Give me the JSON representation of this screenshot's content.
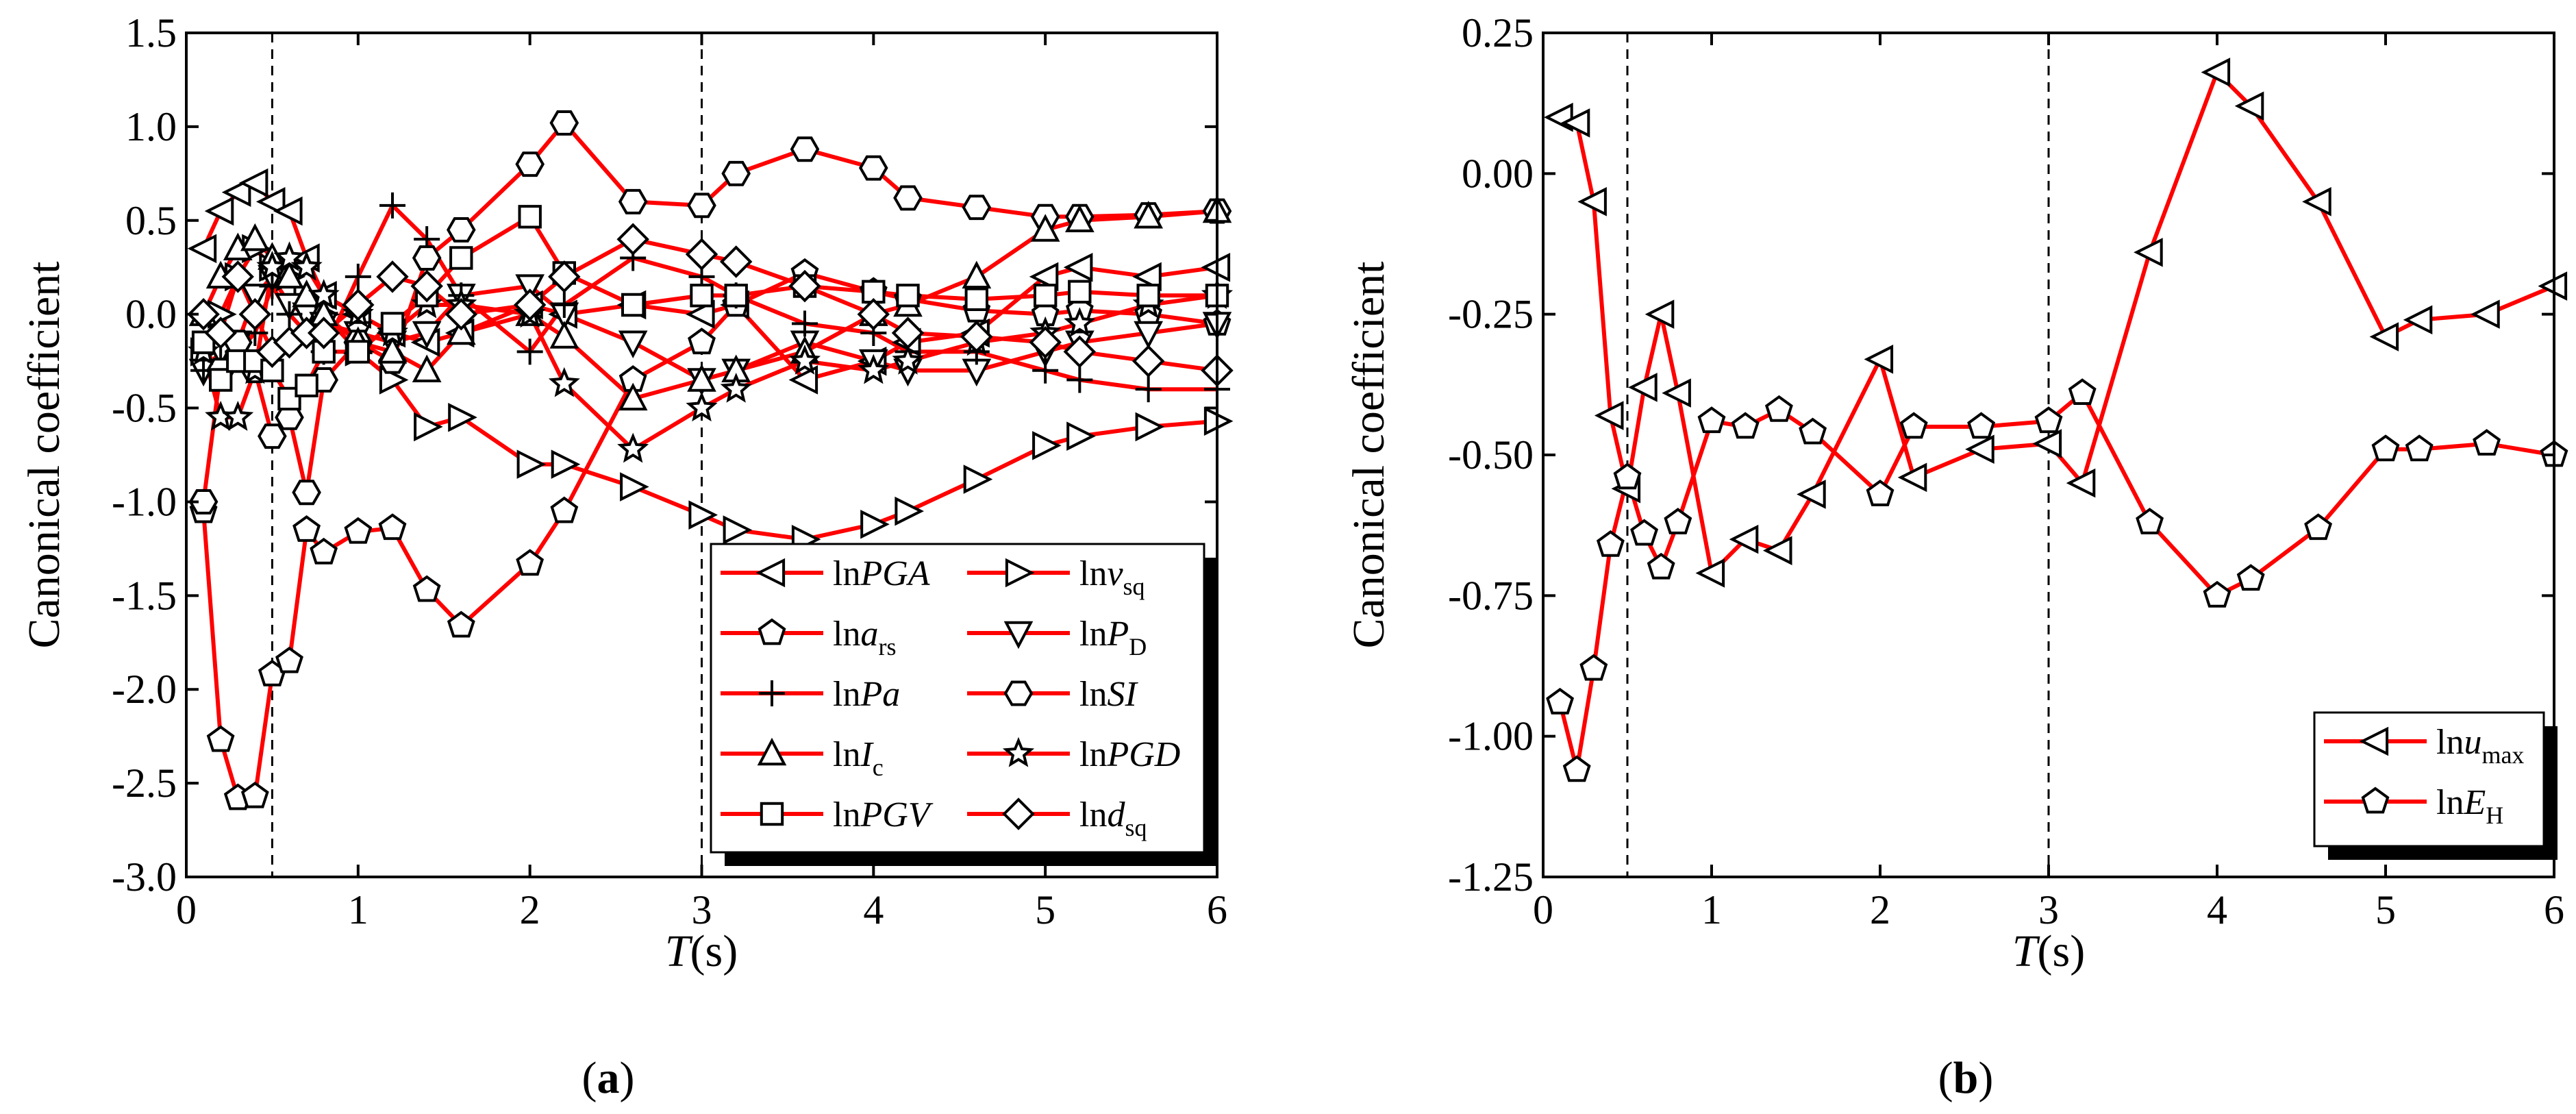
{
  "colors": {
    "series": "#ff0000",
    "marker_fill": "#ffffff",
    "marker_stroke": "#000000",
    "axis": "#000000"
  },
  "chart_data": [
    {
      "type": "line",
      "panel_label_parts": [
        "(",
        "a",
        ")"
      ],
      "xlabel_parts": [
        "T",
        "(s)"
      ],
      "ylabel": "Canonical coefficient",
      "xlim": [
        0,
        6
      ],
      "ylim": [
        -3.0,
        1.5
      ],
      "xticks": [
        "0",
        "1",
        "2",
        "3",
        "4",
        "5",
        "6"
      ],
      "yticks": [
        "-3.0",
        "-2.5",
        "-2.0",
        "-1.5",
        "-1.0",
        "-0.5",
        "0.0",
        "0.5",
        "1.0",
        "1.5"
      ],
      "reference_lines_x": [
        0.5,
        3
      ],
      "legend_position": "bottom-right",
      "series": [
        {
          "name": "lnPGA",
          "legend_parts": [
            "ln",
            "PGA",
            ""
          ],
          "marker": "tri-left",
          "x": [
            0.1,
            0.2,
            0.3,
            0.4,
            0.5,
            0.6,
            0.7,
            0.8,
            1.0,
            1.2,
            1.4,
            1.6,
            2.0,
            2.2,
            2.6,
            3.0,
            3.2,
            3.6,
            4.0,
            4.2,
            4.6,
            5.0,
            5.2,
            5.6,
            6.0
          ],
          "y": [
            0.35,
            0.55,
            0.65,
            0.7,
            0.6,
            0.55,
            0.3,
            0.1,
            0.0,
            -0.1,
            -0.15,
            -0.1,
            0.05,
            0.0,
            0.05,
            0.0,
            0.05,
            -0.35,
            -0.25,
            -0.15,
            -0.1,
            0.2,
            0.25,
            0.2,
            0.25
          ]
        },
        {
          "name": "lnvsq",
          "legend_parts": [
            "ln",
            "v",
            "sq"
          ],
          "marker": "tri-right",
          "x": [
            0.1,
            0.2,
            0.3,
            0.4,
            0.5,
            0.6,
            0.7,
            0.8,
            1.0,
            1.2,
            1.4,
            1.6,
            2.0,
            2.2,
            2.6,
            3.0,
            3.2,
            3.6,
            4.0,
            4.2,
            4.6,
            5.0,
            5.2,
            5.6,
            6.0
          ],
          "y": [
            -0.2,
            0.0,
            0.2,
            0.35,
            0.25,
            0.2,
            0.1,
            0.0,
            -0.2,
            -0.35,
            -0.6,
            -0.55,
            -0.8,
            -0.8,
            -0.92,
            -1.07,
            -1.15,
            -1.2,
            -1.12,
            -1.05,
            -0.88,
            -0.7,
            -0.65,
            -0.6,
            -0.57
          ]
        },
        {
          "name": "lnars",
          "legend_parts": [
            "ln",
            "a",
            "rs"
          ],
          "marker": "pentagon",
          "x": [
            0.1,
            0.2,
            0.3,
            0.4,
            0.5,
            0.6,
            0.7,
            0.8,
            1.0,
            1.2,
            1.4,
            1.6,
            2.0,
            2.2,
            2.6,
            3.0,
            3.2,
            3.6,
            4.0,
            4.2,
            4.6,
            5.0,
            5.2,
            5.6,
            6.0
          ],
          "y": [
            -1.05,
            -2.27,
            -2.58,
            -2.57,
            -1.92,
            -1.85,
            -1.15,
            -1.27,
            -1.16,
            -1.14,
            -1.47,
            -1.66,
            -1.33,
            -1.05,
            -0.35,
            -0.15,
            0.05,
            0.22,
            0.12,
            0.08,
            0.02,
            0.0,
            0.02,
            0.0,
            -0.05
          ]
        },
        {
          "name": "lnPD",
          "legend_parts": [
            "ln",
            "P",
            "D"
          ],
          "marker": "tri-down",
          "x": [
            0.1,
            0.2,
            0.3,
            0.4,
            0.5,
            0.6,
            0.7,
            0.8,
            1.0,
            1.2,
            1.4,
            1.6,
            2.0,
            2.2,
            2.6,
            3.0,
            3.2,
            3.6,
            4.0,
            4.2,
            4.6,
            5.0,
            5.2,
            5.6,
            6.0
          ],
          "y": [
            -0.3,
            -0.2,
            -0.15,
            0.1,
            0.2,
            0.05,
            0.0,
            -0.05,
            -0.1,
            -0.15,
            -0.1,
            0.1,
            0.15,
            0.0,
            -0.15,
            -0.35,
            -0.3,
            -0.15,
            -0.25,
            -0.3,
            -0.3,
            -0.2,
            -0.15,
            -0.1,
            -0.05
          ]
        },
        {
          "name": "lnPa",
          "legend_parts": [
            "ln",
            "Pa",
            ""
          ],
          "marker": "plus",
          "x": [
            0.1,
            0.2,
            0.3,
            0.4,
            0.5,
            0.6,
            0.7,
            0.8,
            1.0,
            1.2,
            1.4,
            1.6,
            2.0,
            2.2,
            2.6,
            3.0,
            3.2,
            3.6,
            4.0,
            4.2,
            4.6,
            5.0,
            5.2,
            5.6,
            6.0
          ],
          "y": [
            -0.3,
            -0.25,
            -0.2,
            -0.1,
            0.15,
            0.0,
            -0.1,
            -0.2,
            0.2,
            0.58,
            0.4,
            0.1,
            -0.2,
            0.05,
            0.3,
            0.2,
            0.1,
            -0.05,
            -0.1,
            -0.2,
            -0.2,
            -0.3,
            -0.35,
            -0.4,
            -0.4
          ]
        },
        {
          "name": "lnSI",
          "legend_parts": [
            "ln",
            "SI",
            ""
          ],
          "marker": "hexagon",
          "x": [
            0.1,
            0.2,
            0.3,
            0.4,
            0.5,
            0.6,
            0.7,
            0.8,
            1.0,
            1.2,
            1.4,
            1.6,
            2.0,
            2.2,
            2.6,
            3.0,
            3.2,
            3.6,
            4.0,
            4.2,
            4.6,
            5.0,
            5.2,
            5.6,
            6.0
          ],
          "y": [
            -1.0,
            -0.3,
            -0.15,
            -0.3,
            -0.65,
            -0.55,
            -0.95,
            -0.35,
            -0.15,
            -0.25,
            0.3,
            0.45,
            0.8,
            1.02,
            0.6,
            0.58,
            0.75,
            0.88,
            0.78,
            0.62,
            0.57,
            0.52,
            0.52,
            0.53,
            0.55
          ]
        },
        {
          "name": "lnIc",
          "legend_parts": [
            "ln",
            "I",
            "c"
          ],
          "marker": "tri-up",
          "x": [
            0.1,
            0.2,
            0.3,
            0.4,
            0.5,
            0.6,
            0.7,
            0.8,
            1.0,
            1.2,
            1.4,
            1.6,
            2.0,
            2.2,
            2.6,
            3.0,
            3.2,
            3.6,
            4.0,
            4.2,
            4.6,
            5.0,
            5.2,
            5.6,
            6.0
          ],
          "y": [
            0.0,
            0.2,
            0.35,
            0.4,
            0.3,
            0.2,
            0.1,
            0.0,
            -0.15,
            -0.2,
            -0.3,
            -0.1,
            0.0,
            -0.12,
            -0.45,
            -0.35,
            -0.3,
            -0.2,
            0.0,
            0.05,
            0.2,
            0.45,
            0.5,
            0.52,
            0.55
          ]
        },
        {
          "name": "lnPGD",
          "legend_parts": [
            "ln",
            "PGD",
            ""
          ],
          "marker": "star",
          "x": [
            0.1,
            0.2,
            0.3,
            0.4,
            0.5,
            0.6,
            0.7,
            0.8,
            1.0,
            1.2,
            1.4,
            1.6,
            2.0,
            2.2,
            2.6,
            3.0,
            3.2,
            3.6,
            4.0,
            4.2,
            4.6,
            5.0,
            5.2,
            5.6,
            6.0
          ],
          "y": [
            -0.2,
            -0.55,
            -0.55,
            -0.3,
            0.25,
            0.3,
            0.25,
            0.1,
            0.0,
            -0.1,
            0.05,
            0.05,
            0.0,
            -0.37,
            -0.72,
            -0.5,
            -0.4,
            -0.25,
            -0.3,
            -0.25,
            -0.15,
            -0.1,
            -0.05,
            0.05,
            0.1
          ]
        },
        {
          "name": "lnPGV",
          "legend_parts": [
            "ln",
            "PGV",
            ""
          ],
          "marker": "square",
          "x": [
            0.1,
            0.2,
            0.3,
            0.4,
            0.5,
            0.6,
            0.7,
            0.8,
            1.0,
            1.2,
            1.4,
            1.6,
            2.0,
            2.2,
            2.6,
            3.0,
            3.2,
            3.6,
            4.0,
            4.2,
            4.6,
            5.0,
            5.2,
            5.6,
            6.0
          ],
          "y": [
            -0.15,
            -0.35,
            -0.25,
            -0.25,
            -0.3,
            -0.45,
            -0.38,
            -0.2,
            -0.2,
            -0.05,
            0.1,
            0.3,
            0.52,
            0.22,
            0.05,
            0.1,
            0.1,
            0.15,
            0.12,
            0.1,
            0.08,
            0.1,
            0.12,
            0.1,
            0.1
          ]
        },
        {
          "name": "lndsq",
          "legend_parts": [
            "ln",
            "d",
            "sq"
          ],
          "marker": "diamond",
          "x": [
            0.1,
            0.2,
            0.3,
            0.4,
            0.5,
            0.6,
            0.7,
            0.8,
            1.0,
            1.2,
            1.4,
            1.6,
            2.0,
            2.2,
            2.6,
            3.0,
            3.2,
            3.6,
            4.0,
            4.2,
            4.6,
            5.0,
            5.2,
            5.6,
            6.0
          ],
          "y": [
            0.0,
            -0.1,
            0.2,
            0.0,
            -0.2,
            -0.15,
            -0.1,
            -0.1,
            0.05,
            0.2,
            0.15,
            0.0,
            0.05,
            0.2,
            0.4,
            0.32,
            0.28,
            0.15,
            0.0,
            -0.1,
            -0.12,
            -0.15,
            -0.2,
            -0.25,
            -0.3
          ]
        }
      ]
    },
    {
      "type": "line",
      "panel_label_parts": [
        "(",
        "b",
        ")"
      ],
      "xlabel_parts": [
        "T",
        "(s)"
      ],
      "ylabel": "Canonical coefficient",
      "xlim": [
        0,
        6
      ],
      "ylim": [
        -1.25,
        0.25
      ],
      "xticks": [
        "0",
        "1",
        "2",
        "3",
        "4",
        "5",
        "6"
      ],
      "yticks": [
        "-1.25",
        "-1.00",
        "-0.75",
        "-0.50",
        "-0.25",
        "0.00",
        "0.25"
      ],
      "reference_lines_x": [
        0.5,
        3
      ],
      "legend_position": "bottom-right",
      "series": [
        {
          "name": "lnumax",
          "legend_parts": [
            "ln",
            "u",
            "max"
          ],
          "marker": "tri-left",
          "x": [
            0.1,
            0.2,
            0.3,
            0.4,
            0.5,
            0.6,
            0.7,
            0.8,
            1.0,
            1.2,
            1.4,
            1.6,
            2.0,
            2.2,
            2.6,
            3.0,
            3.2,
            3.6,
            4.0,
            4.2,
            4.6,
            5.0,
            5.2,
            5.6,
            6.0
          ],
          "y": [
            0.1,
            0.09,
            -0.05,
            -0.43,
            -0.56,
            -0.38,
            -0.25,
            -0.39,
            -0.71,
            -0.65,
            -0.67,
            -0.57,
            -0.33,
            -0.54,
            -0.49,
            -0.48,
            -0.55,
            -0.14,
            0.18,
            0.12,
            -0.05,
            -0.29,
            -0.26,
            -0.25,
            -0.2
          ]
        },
        {
          "name": "lnEH",
          "legend_parts": [
            "ln",
            "E",
            "H"
          ],
          "marker": "pentagon",
          "x": [
            0.1,
            0.2,
            0.3,
            0.4,
            0.5,
            0.6,
            0.7,
            0.8,
            1.0,
            1.2,
            1.4,
            1.6,
            2.0,
            2.2,
            2.6,
            3.0,
            3.2,
            3.6,
            4.0,
            4.2,
            4.6,
            5.0,
            5.2,
            5.6,
            6.0
          ],
          "y": [
            -0.94,
            -1.06,
            -0.88,
            -0.66,
            -0.54,
            -0.64,
            -0.7,
            -0.62,
            -0.44,
            -0.45,
            -0.42,
            -0.46,
            -0.57,
            -0.45,
            -0.45,
            -0.44,
            -0.39,
            -0.62,
            -0.75,
            -0.72,
            -0.63,
            -0.49,
            -0.49,
            -0.48,
            -0.5
          ]
        }
      ]
    }
  ]
}
